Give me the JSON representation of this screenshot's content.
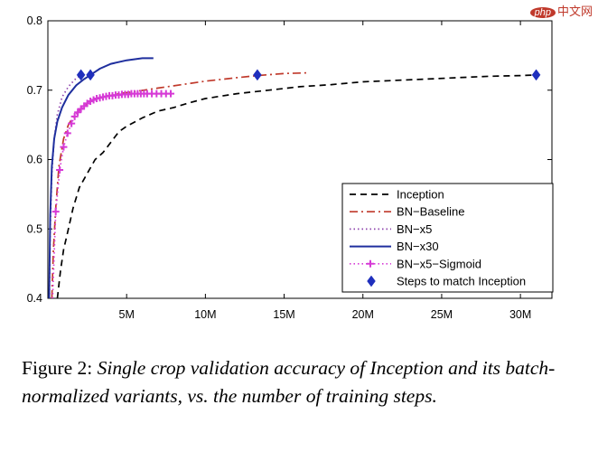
{
  "watermark": {
    "logo": "php",
    "text": "中文网"
  },
  "caption": {
    "label": "Figure 2:",
    "text": "Single crop validation accuracy of Inception and its batch-normalized variants, vs.  the number of training steps."
  },
  "chart_data": {
    "type": "line",
    "title": "",
    "xlabel": "",
    "ylabel": "",
    "xlim": [
      0,
      32000000
    ],
    "ylim": [
      0.4,
      0.8
    ],
    "grid": false,
    "legend_position": "bottom-right",
    "x_ticks": [
      {
        "value": 5000000,
        "label": "5M"
      },
      {
        "value": 10000000,
        "label": "10M"
      },
      {
        "value": 15000000,
        "label": "15M"
      },
      {
        "value": 20000000,
        "label": "20M"
      },
      {
        "value": 25000000,
        "label": "25M"
      },
      {
        "value": 30000000,
        "label": "30M"
      }
    ],
    "y_ticks": [
      {
        "value": 0.4,
        "label": "0.4"
      },
      {
        "value": 0.5,
        "label": "0.5"
      },
      {
        "value": 0.6,
        "label": "0.6"
      },
      {
        "value": 0.7,
        "label": "0.7"
      },
      {
        "value": 0.8,
        "label": "0.8"
      }
    ],
    "series": [
      {
        "name": "Inception",
        "color": "#000000",
        "style": "dashed",
        "x": [
          600000,
          800000,
          1000000,
          1300000,
          1600000,
          2000000,
          2500000,
          3000000,
          3500000,
          4000000,
          4500000,
          5000000,
          6000000,
          7000000,
          8000000,
          9000000,
          10000000,
          12000000,
          14000000,
          16000000,
          18000000,
          20000000,
          22000000,
          24000000,
          26000000,
          28000000,
          30000000,
          31000000
        ],
        "y": [
          0.4,
          0.44,
          0.47,
          0.5,
          0.53,
          0.56,
          0.58,
          0.6,
          0.61,
          0.625,
          0.64,
          0.648,
          0.66,
          0.67,
          0.675,
          0.682,
          0.688,
          0.695,
          0.7,
          0.705,
          0.708,
          0.712,
          0.714,
          0.716,
          0.718,
          0.72,
          0.721,
          0.722
        ]
      },
      {
        "name": "BN−Baseline",
        "color": "#c0392b",
        "style": "dashdot",
        "x": [
          250000,
          350000,
          500000,
          700000,
          1000000,
          1300000,
          1700000,
          2200000,
          2800000,
          3500000,
          4500000,
          5500000,
          7000000,
          8500000,
          10000000,
          12000000,
          13300000,
          15000000,
          16500000
        ],
        "y": [
          0.4,
          0.47,
          0.53,
          0.59,
          0.63,
          0.65,
          0.665,
          0.675,
          0.685,
          0.69,
          0.695,
          0.698,
          0.703,
          0.708,
          0.713,
          0.718,
          0.721,
          0.724,
          0.725
        ]
      },
      {
        "name": "BN−x5",
        "color": "#8e44ad",
        "style": "dotted",
        "x": [
          100000,
          150000,
          250000,
          400000,
          600000,
          900000,
          1300000,
          1700000,
          2100000
        ],
        "y": [
          0.4,
          0.5,
          0.58,
          0.63,
          0.665,
          0.69,
          0.705,
          0.715,
          0.722
        ]
      },
      {
        "name": "BN−x30",
        "color": "#1f2f9e",
        "style": "solid",
        "x": [
          80000,
          150000,
          250000,
          400000,
          600000,
          900000,
          1300000,
          1800000,
          2300000,
          2700000,
          3300000,
          4000000,
          5000000,
          6000000,
          6700000
        ],
        "y": [
          0.4,
          0.52,
          0.59,
          0.63,
          0.655,
          0.675,
          0.693,
          0.707,
          0.716,
          0.722,
          0.731,
          0.738,
          0.743,
          0.746,
          0.746
        ]
      },
      {
        "name": "BN−x5−Sigmoid",
        "color": "#d63ad6",
        "style": "dotted-plus",
        "x": [
          300000,
          500000,
          750000,
          1000000,
          1250000,
          1500000,
          1700000,
          1900000,
          2100000,
          2300000,
          2500000,
          2700000,
          2900000,
          3100000,
          3300000,
          3500000,
          3700000,
          3900000,
          4100000,
          4300000,
          4500000,
          4700000,
          4900000,
          5100000,
          5300000,
          5500000,
          5700000,
          5900000,
          6100000,
          6300000,
          6600000,
          6900000,
          7200000,
          7500000,
          7800000
        ],
        "y": [
          0.4,
          0.525,
          0.585,
          0.618,
          0.638,
          0.652,
          0.662,
          0.668,
          0.673,
          0.677,
          0.681,
          0.684,
          0.686,
          0.688,
          0.689,
          0.69,
          0.691,
          0.692,
          0.692,
          0.693,
          0.693,
          0.694,
          0.694,
          0.694,
          0.695,
          0.695,
          0.695,
          0.695,
          0.695,
          0.695,
          0.695,
          0.695,
          0.695,
          0.695,
          0.695
        ]
      },
      {
        "name": "Steps to match Inception",
        "color": "#1f2fbd",
        "style": "diamond",
        "x": [
          2100000,
          2700000,
          13300000,
          31000000
        ],
        "y": [
          0.722,
          0.722,
          0.722,
          0.722
        ]
      }
    ]
  }
}
